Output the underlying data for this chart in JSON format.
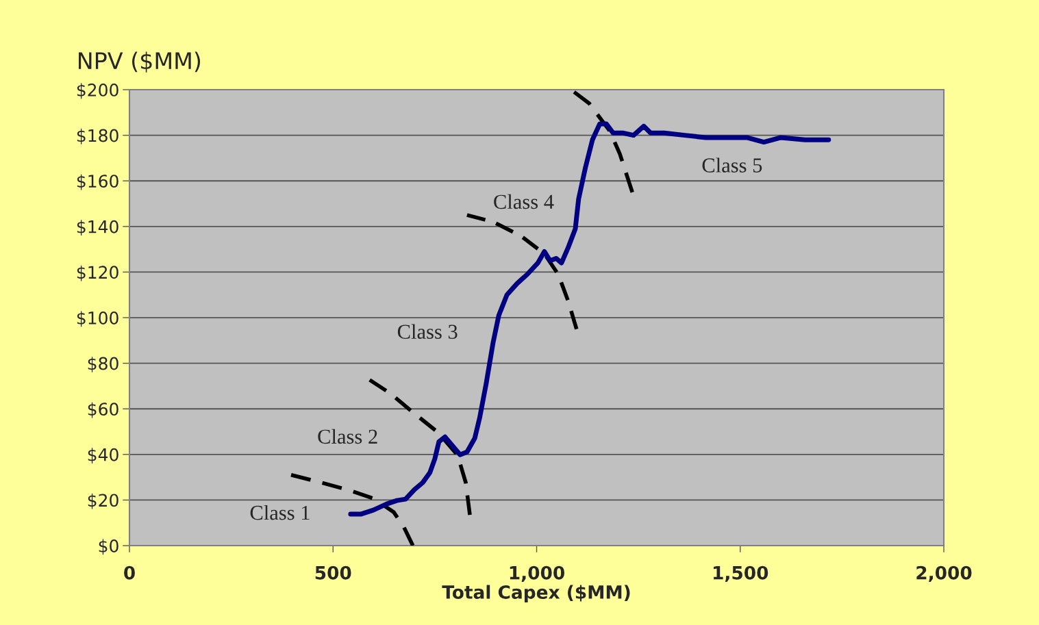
{
  "chart_data": {
    "type": "line",
    "xlabel": "Total Capex ($MM)",
    "ylabel": "NPV ($MM)",
    "xlim": [
      0,
      2000
    ],
    "xticks": [
      0,
      {
        "value": 500,
        "label": "500"
      },
      {
        "value": 1000,
        "label": "1,000"
      },
      {
        "value": 1500,
        "label": "1,500"
      },
      {
        "value": 2000,
        "label": "2,000"
      }
    ],
    "ylim": [
      0,
      200
    ],
    "yticks": [
      {
        "value": 0,
        "label": "$0"
      },
      {
        "value": 20,
        "label": "$20"
      },
      {
        "value": 40,
        "label": "$40"
      },
      {
        "value": 60,
        "label": "$60"
      },
      {
        "value": 80,
        "label": "$80"
      },
      {
        "value": 100,
        "label": "$100"
      },
      {
        "value": 120,
        "label": "$120"
      },
      {
        "value": 140,
        "label": "$140"
      },
      {
        "value": 160,
        "label": "$160"
      },
      {
        "value": 180,
        "label": "$180"
      },
      {
        "value": 200,
        "label": "$200"
      }
    ],
    "grid": "y",
    "line_style": "solid",
    "series": [
      {
        "color": "#000080",
        "x": [
          543,
          568,
          599,
          632,
          657,
          678,
          700,
          720,
          738,
          750,
          760,
          775,
          792,
          812,
          829,
          848,
          860,
          876,
          893,
          907,
          927,
          952,
          977,
          1003,
          1019,
          1033,
          1048,
          1061,
          1078,
          1095,
          1103,
          1120,
          1137,
          1155,
          1171,
          1188,
          1213,
          1238,
          1263,
          1280,
          1313,
          1364,
          1415,
          1465,
          1516,
          1558,
          1600,
          1659,
          1717
        ],
        "values": [
          13.8,
          13.8,
          15.6,
          18.3,
          19.8,
          20.4,
          24.6,
          27.6,
          32.1,
          38.1,
          45.6,
          47.7,
          44.1,
          39.9,
          41.1,
          47.1,
          56,
          71,
          89,
          101,
          110,
          115,
          119,
          124,
          129,
          125,
          126,
          124,
          131,
          139,
          152,
          166,
          178,
          185,
          185,
          181,
          181,
          180,
          184,
          181,
          181,
          180,
          179,
          179,
          179,
          177,
          179,
          178,
          178
        ]
      },
      {
        "color": "#000000",
        "line_style": "dashed",
        "x": [
          397,
          472,
          540,
          599,
          649,
          674,
          696
        ],
        "values": [
          31,
          27.6,
          24.3,
          20.7,
          14.7,
          8.1,
          0
        ]
      },
      {
        "color": "#000000",
        "line_style": "dashed",
        "x": [
          590,
          641,
          691,
          759,
          806,
          826,
          836
        ],
        "values": [
          72.7,
          66.7,
          59.2,
          49.5,
          39.6,
          27.6,
          13.5
        ]
      },
      {
        "color": "#000000",
        "line_style": "dashed",
        "x": [
          829,
          893,
          960,
          1019,
          1053,
          1078,
          1098
        ],
        "values": [
          145,
          142,
          136,
          128,
          119,
          107,
          95
        ]
      },
      {
        "color": "#000000",
        "line_style": "dashed",
        "x": [
          1092,
          1129,
          1154,
          1179,
          1204,
          1235
        ],
        "values": [
          199,
          194,
          188,
          182,
          172,
          155
        ]
      }
    ],
    "annotations": [
      "Class 1",
      "Class 2",
      "Class 3",
      "Class 4",
      "Class 5"
    ]
  }
}
